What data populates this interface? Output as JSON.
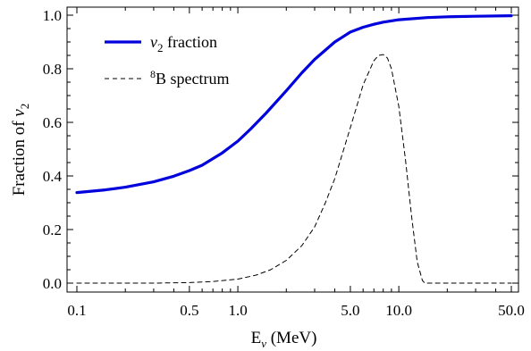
{
  "chart_data": {
    "type": "line",
    "xscale": "log",
    "xlim": [
      0.1,
      50.0
    ],
    "ylim": [
      0.0,
      1.0
    ],
    "xlabel": {
      "main": "E",
      "sub": "ν",
      "unit": " (MeV)"
    },
    "ylabel": {
      "main": "Fraction of ",
      "var": "ν",
      "sub": "2"
    },
    "x_ticks": [
      {
        "value": 0.1,
        "label": "0.1"
      },
      {
        "value": 0.5,
        "label": "0.5"
      },
      {
        "value": 1.0,
        "label": "1.0"
      },
      {
        "value": 5.0,
        "label": "5.0"
      },
      {
        "value": 10.0,
        "label": "10.0"
      },
      {
        "value": 50.0,
        "label": "50.0"
      }
    ],
    "y_ticks": [
      {
        "value": 0.0,
        "label": "0.0"
      },
      {
        "value": 0.2,
        "label": "0.2"
      },
      {
        "value": 0.4,
        "label": "0.4"
      },
      {
        "value": 0.6,
        "label": "0.6"
      },
      {
        "value": 0.8,
        "label": "0.8"
      },
      {
        "value": 1.0,
        "label": "1.0"
      }
    ],
    "legend_placement": "top-left",
    "series": [
      {
        "name": "ν2 fraction",
        "legend": {
          "var": "ν",
          "sub": "2",
          "text": " fraction"
        },
        "color": "#0000dd",
        "style": "solid",
        "x": [
          0.1,
          0.15,
          0.2,
          0.3,
          0.4,
          0.5,
          0.6,
          0.8,
          1.0,
          1.2,
          1.5,
          2.0,
          2.5,
          3.0,
          4.0,
          5.0,
          6.0,
          7.0,
          8.0,
          10.0,
          15.0,
          20.0,
          30.0,
          50.0
        ],
        "y": [
          0.338,
          0.348,
          0.358,
          0.378,
          0.399,
          0.42,
          0.44,
          0.486,
          0.53,
          0.575,
          0.635,
          0.718,
          0.785,
          0.835,
          0.9,
          0.937,
          0.955,
          0.966,
          0.974,
          0.983,
          0.991,
          0.994,
          0.996,
          0.998
        ]
      },
      {
        "name": "8B spectrum",
        "legend": {
          "sup": "8",
          "text": "B spectrum"
        },
        "color": "#000000",
        "style": "dashed",
        "x": [
          0.1,
          0.3,
          0.5,
          0.7,
          1.0,
          1.3,
          1.6,
          2.0,
          2.5,
          3.0,
          3.5,
          4.0,
          5.0,
          6.0,
          7.0,
          7.5,
          8.0,
          8.5,
          9.0,
          10.0,
          11.0,
          12.0,
          13.0,
          14.0,
          14.5,
          15.0,
          20.0,
          50.0
        ],
        "y": [
          0.0,
          0.0,
          0.002,
          0.006,
          0.015,
          0.03,
          0.05,
          0.085,
          0.14,
          0.21,
          0.3,
          0.39,
          0.58,
          0.74,
          0.83,
          0.85,
          0.853,
          0.84,
          0.8,
          0.66,
          0.46,
          0.25,
          0.08,
          0.01,
          0.0,
          0.0,
          0.0,
          0.0
        ]
      }
    ]
  }
}
